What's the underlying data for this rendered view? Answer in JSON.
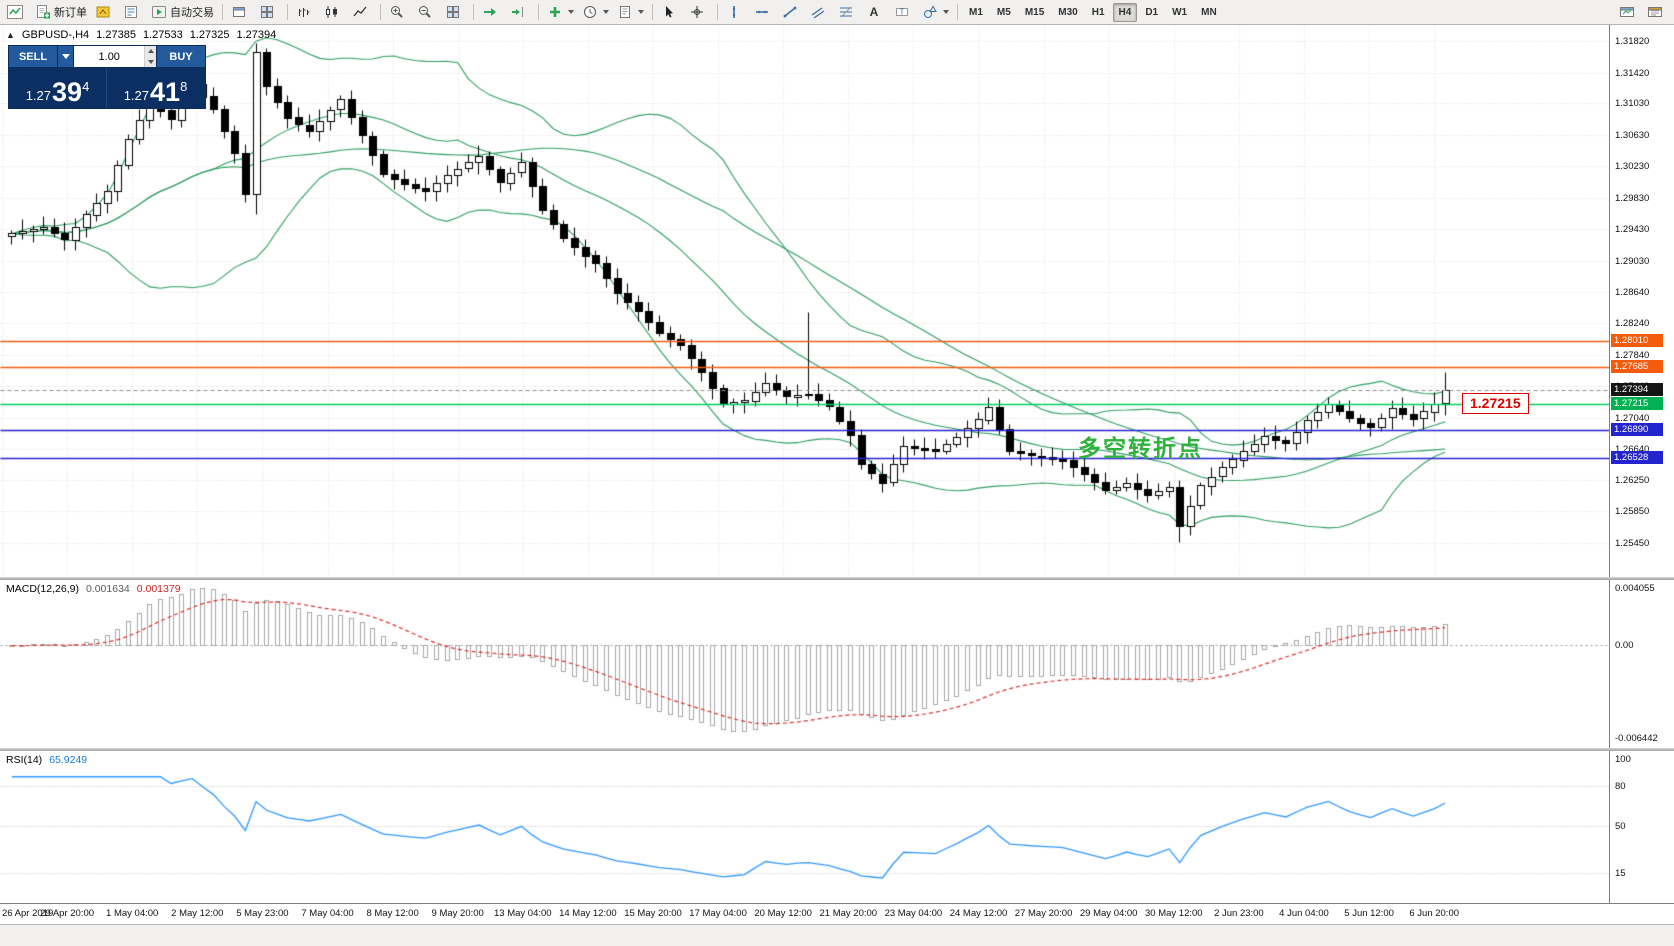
{
  "toolbar": {
    "new_order_label": "新订单",
    "autotrading_label": "自动交易",
    "timeframes": [
      "M1",
      "M5",
      "M15",
      "M30",
      "H1",
      "H4",
      "D1",
      "W1",
      "MN"
    ],
    "active_timeframe": "H4",
    "items": [
      {
        "name": "new-chart-icon",
        "icon": "app-chart"
      },
      {
        "name": "new-order-button",
        "icon": "new-order",
        "label_key": "new_order_label"
      },
      {
        "name": "metaeditor-icon",
        "icon": "metaeditor"
      },
      {
        "name": "market-watch-icon",
        "icon": "market-watch"
      },
      {
        "name": "autotrading-button",
        "icon": "autotrading",
        "label_key": "autotrading_label"
      },
      {
        "sep": true
      },
      {
        "name": "cascade-windows-icon",
        "icon": "window"
      },
      {
        "name": "tile-windows-icon",
        "icon": "tile"
      },
      {
        "sep": true
      },
      {
        "name": "bar-chart-icon",
        "icon": "bar-chart"
      },
      {
        "name": "candlestick-chart-icon",
        "icon": "candle-chart"
      },
      {
        "name": "line-chart-icon",
        "icon": "line-chart"
      },
      {
        "sep": true
      },
      {
        "name": "zoom-in-icon",
        "icon": "zoom-in"
      },
      {
        "name": "zoom-out-icon",
        "icon": "zoom-out"
      },
      {
        "name": "tile-grid-icon",
        "icon": "tile"
      },
      {
        "sep": true
      },
      {
        "name": "auto-scroll-icon",
        "icon": "auto-scroll"
      },
      {
        "name": "chart-shift-icon",
        "icon": "chart-shift"
      },
      {
        "sep": true
      },
      {
        "name": "indicators-icon",
        "icon": "ind-add",
        "dropdown": true
      },
      {
        "name": "periods-icon",
        "icon": "clock",
        "dropdown": true
      },
      {
        "name": "templates-icon",
        "icon": "template",
        "dropdown": true
      },
      {
        "sep": true
      },
      {
        "name": "cursor-icon",
        "icon": "cursor"
      },
      {
        "name": "crosshair-icon",
        "icon": "crosshair"
      },
      {
        "sep": true
      },
      {
        "name": "vertical-line-icon",
        "icon": "vline"
      },
      {
        "name": "horizontal-line-icon",
        "icon": "hline"
      },
      {
        "name": "trendline-icon",
        "icon": "tline"
      },
      {
        "name": "channel-icon",
        "icon": "channel"
      },
      {
        "name": "fibonacci-icon",
        "icon": "fibo"
      },
      {
        "name": "text-icon",
        "icon": "text-a"
      },
      {
        "name": "label-icon",
        "icon": "label-t"
      },
      {
        "name": "shapes-icon",
        "icon": "shapes",
        "dropdown": true
      },
      {
        "sep": true
      }
    ],
    "right_items": [
      {
        "name": "chart-window-icon-1",
        "icon": "mini-win"
      },
      {
        "name": "chart-window-icon-2",
        "icon": "mini-win2"
      }
    ]
  },
  "chart_header": {
    "collapse_arrow": "▲",
    "symbol_period": "GBPUSD-,H4",
    "open": "1.27385",
    "high": "1.27533",
    "low": "1.27325",
    "close": "1.27394"
  },
  "one_click": {
    "sell_label": "SELL",
    "buy_label": "BUY",
    "volume": "1.00",
    "sell_price": {
      "prefix": "1.27",
      "big": "39",
      "sup": "4"
    },
    "buy_price": {
      "prefix": "1.27",
      "big": "41",
      "sup": "8"
    }
  },
  "annotation": {
    "text": "多空转折点",
    "color": "#2db33c",
    "price_callout": "1.27215"
  },
  "price_axis": {
    "ticks": [
      "1.31820",
      "1.31420",
      "1.31030",
      "1.30630",
      "1.30230",
      "1.29830",
      "1.29430",
      "1.29030",
      "1.28640",
      "1.28240",
      "1.27840",
      "1.27440",
      "1.27040",
      "1.26640",
      "1.26250",
      "1.25850",
      "1.25450"
    ]
  },
  "levels": [
    {
      "price": 1.2801,
      "label": "1.28010",
      "line_color": "#f45b0c",
      "badge_color": "#f45b0c",
      "style": "solid"
    },
    {
      "price": 1.27685,
      "label": "1.27685",
      "line_color": "#f45b0c",
      "badge_color": "#f45b0c",
      "style": "solid"
    },
    {
      "price": 1.27394,
      "label": "1.27394",
      "line_color": "#909090",
      "badge_color": "#151515",
      "style": "dashed"
    },
    {
      "price": 1.27215,
      "label": "1.27215",
      "line_color": "#00cf5f",
      "badge_color": "#00b253",
      "style": "solid"
    },
    {
      "price": 1.2689,
      "label": "1.26890",
      "line_color": "#2424cf",
      "badge_color": "#2424cf",
      "style": "solid"
    },
    {
      "price": 1.26528,
      "label": "1.26528",
      "line_color": "#2424cf",
      "badge_color": "#2424cf",
      "style": "solid"
    }
  ],
  "macd": {
    "label": "MACD(12,26,9)",
    "value_main": "0.001634",
    "value_signal": "0.001379",
    "axis_top": "0.004055",
    "axis_zero": "0.00",
    "axis_bottom": "-0.006442"
  },
  "rsi": {
    "label": "RSI(14)",
    "value": "65.9249",
    "axis_labels": [
      "100",
      "80",
      "50",
      "15"
    ],
    "levels": [
      80,
      50,
      15
    ]
  },
  "date_axis": [
    "26 Apr 2019",
    "29 Apr 20:00",
    "1 May 04:00",
    "2 May 12:00",
    "5 May 23:00",
    "7 May 04:00",
    "8 May 12:00",
    "9 May 20:00",
    "13 May 04:00",
    "14 May 12:00",
    "15 May 20:00",
    "17 May 04:00",
    "20 May 12:00",
    "21 May 20:00",
    "23 May 04:00",
    "24 May 12:00",
    "27 May 20:00",
    "29 May 04:00",
    "30 May 12:00",
    "2 Jun 23:00",
    "4 Jun 04:00",
    "5 Jun 12:00",
    "6 Jun 20:00"
  ],
  "chart_data": {
    "type": "candlestick",
    "symbol": "GBPUSD-",
    "period": "H4",
    "title": "GBPUSD-,H4 1.27385 1.27533 1.27325 1.27394",
    "ylim": [
      1.2545,
      1.3182
    ],
    "overlays": {
      "bollinger_period": 20,
      "bollinger_dev": 2,
      "ma_period": 45,
      "band_color": "#2f9e63"
    },
    "indicators": {
      "macd": {
        "fast": 12,
        "slow": 26,
        "signal": 9
      },
      "rsi": {
        "period": 14
      }
    },
    "candles": {
      "first_open": 1.2934,
      "closes": [
        1.2938,
        1.2941,
        1.2944,
        1.2946,
        1.2938,
        1.293,
        1.2946,
        1.2962,
        1.2977,
        1.2992,
        1.3025,
        1.3058,
        1.3082,
        1.3105,
        1.3094,
        1.3082,
        1.3105,
        1.3128,
        1.3112,
        1.3096,
        1.3068,
        1.304,
        1.2988,
        1.3168,
        1.3125,
        1.3105,
        1.3085,
        1.3076,
        1.3068,
        1.3081,
        1.3095,
        1.3108,
        1.3085,
        1.3062,
        1.3038,
        1.3013,
        1.3007,
        1.3001,
        1.2996,
        1.2992,
        1.3002,
        1.3012,
        1.302,
        1.3028,
        1.3036,
        1.3019,
        1.3002,
        1.3015,
        1.3028,
        1.2998,
        1.2968,
        1.295,
        1.2932,
        1.2921,
        1.291,
        1.29,
        1.2881,
        1.2862,
        1.2851,
        1.284,
        1.2826,
        1.2812,
        1.2804,
        1.2796,
        1.2779,
        1.2762,
        1.2742,
        1.2722,
        1.2724,
        1.2726,
        1.2737,
        1.2748,
        1.2739,
        1.2731,
        1.2733,
        1.2734,
        1.2726,
        1.2718,
        1.27,
        1.2682,
        1.2645,
        1.2633,
        1.2622,
        1.2645,
        1.2668,
        1.2666,
        1.2664,
        1.2662,
        1.2671,
        1.268,
        1.2691,
        1.2702,
        1.2718,
        1.269,
        1.2662,
        1.2659,
        1.2656,
        1.2654,
        1.2652,
        1.265,
        1.2641,
        1.2632,
        1.2622,
        1.2612,
        1.2616,
        1.2621,
        1.2613,
        1.2606,
        1.2611,
        1.2616,
        1.2566,
        1.2592,
        1.2618,
        1.2629,
        1.2641,
        1.2651,
        1.2662,
        1.2671,
        1.2681,
        1.2676,
        1.2672,
        1.2686,
        1.2701,
        1.2711,
        1.2721,
        1.2712,
        1.2703,
        1.2697,
        1.2692,
        1.2704,
        1.2716,
        1.2709,
        1.2703,
        1.2712,
        1.2722,
        1.2739
      ],
      "wick_overrides": {
        "23": {
          "h": 1.318,
          "l": 1.2962
        },
        "75": {
          "h": 1.2838
        },
        "110": {
          "l": 1.2546
        },
        "135": {
          "h": 1.2762
        }
      }
    }
  }
}
